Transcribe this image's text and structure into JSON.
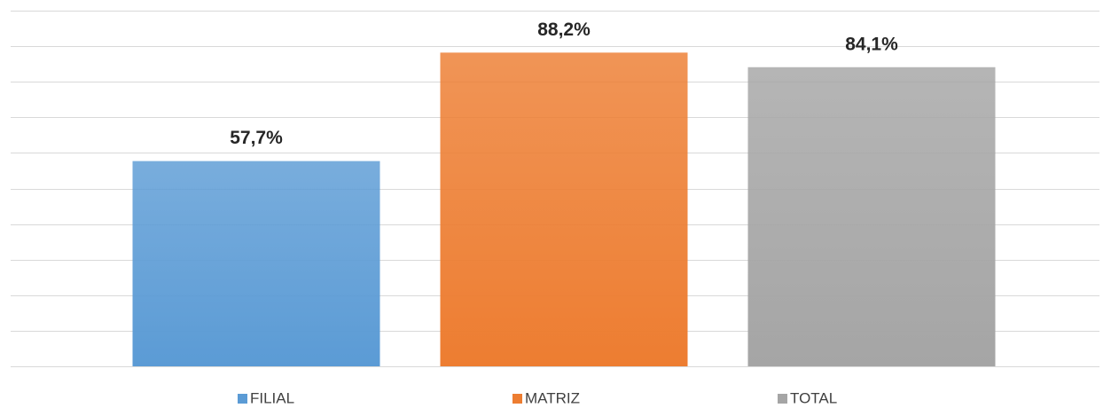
{
  "chart_data": {
    "type": "bar",
    "series": [
      {
        "name": "FILIAL",
        "color": "#5b9bd5",
        "values": [
          57.7
        ],
        "value_labels": [
          "57,7%"
        ]
      },
      {
        "name": "MATRIZ",
        "color": "#ed7d31",
        "values": [
          88.2
        ],
        "value_labels": [
          "88,2%"
        ]
      },
      {
        "name": "TOTAL",
        "color": "#a5a5a5",
        "values": [
          84.1
        ],
        "value_labels": [
          "84,1%"
        ]
      }
    ],
    "ylim": [
      0,
      100
    ],
    "yticks": [
      0,
      10,
      20,
      30,
      40,
      50,
      60,
      70,
      80,
      90,
      100
    ],
    "grid": true,
    "legend": "bottom"
  }
}
